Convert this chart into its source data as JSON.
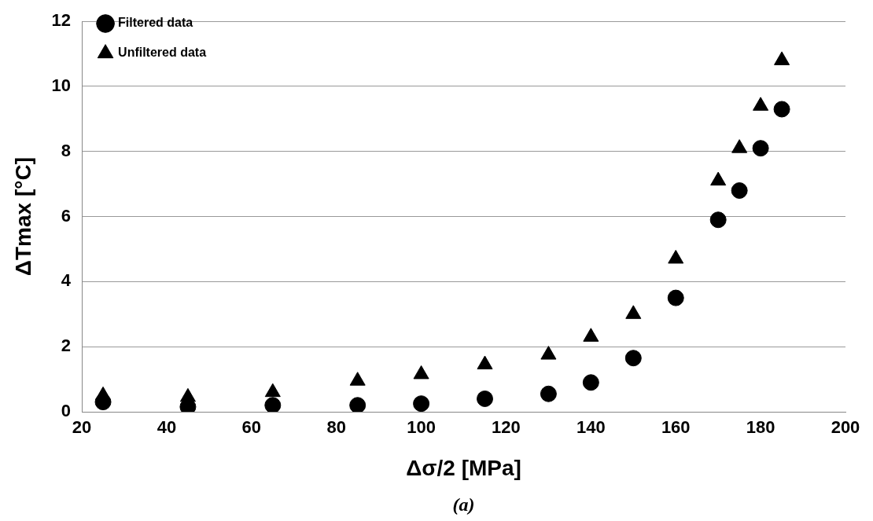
{
  "chart_data": {
    "type": "scatter",
    "xlabel": "Δσ/2 [MPa]",
    "ylabel": "ΔTmax [°C]",
    "annotations": [
      "(a)"
    ],
    "x": [
      25,
      45,
      65,
      85,
      100,
      115,
      130,
      140,
      150,
      160,
      170,
      175,
      180,
      185
    ],
    "series": [
      {
        "name": "Filtered data",
        "color": "#000000",
        "marker": "circle",
        "values": [
          0.3,
          0.15,
          0.2,
          0.2,
          0.25,
          0.4,
          0.55,
          0.9,
          1.65,
          3.5,
          5.9,
          6.8,
          8.1,
          9.3
        ]
      },
      {
        "name": "Unfiltered data",
        "color": "#000000",
        "marker": "triangle",
        "values": [
          0.5,
          0.45,
          0.6,
          0.95,
          1.15,
          1.45,
          1.75,
          2.3,
          3.0,
          4.7,
          7.1,
          8.1,
          9.4,
          10.8
        ]
      }
    ],
    "xlim": [
      20,
      200
    ],
    "xticks": [
      20,
      40,
      60,
      80,
      100,
      120,
      140,
      160,
      180,
      200
    ],
    "ylim": [
      0,
      12
    ],
    "yticks": [
      0,
      2,
      4,
      6,
      8,
      10,
      12
    ],
    "grid": "y",
    "legend": "top left"
  }
}
